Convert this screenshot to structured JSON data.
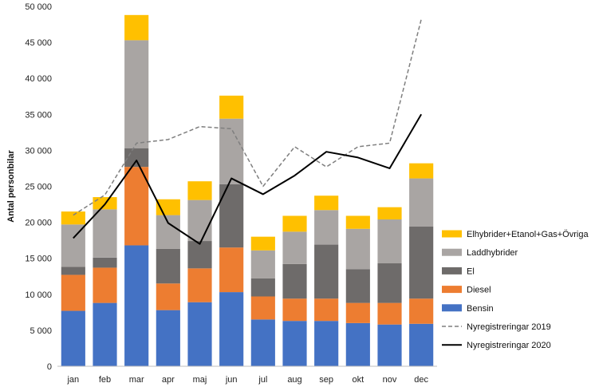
{
  "chart_data": {
    "type": "bar",
    "stacked": true,
    "ylabel": "Antal personbilar",
    "xlabel": "",
    "ylim": [
      0,
      50000
    ],
    "yticks": [
      0,
      5000,
      10000,
      15000,
      20000,
      25000,
      30000,
      35000,
      40000,
      45000,
      50000
    ],
    "ytick_labels": [
      "0",
      "5 000",
      "10 000",
      "15 000",
      "20 000",
      "25 000",
      "30 000",
      "35 000",
      "40 000",
      "45 000",
      "50 000"
    ],
    "grid": false,
    "legend_position": "right",
    "categories": [
      "jan",
      "feb",
      "mar",
      "apr",
      "maj",
      "jun",
      "jul",
      "aug",
      "sep",
      "okt",
      "nov",
      "dec"
    ],
    "series": [
      {
        "name": "Bensin",
        "color": "#4472c4",
        "values": [
          7700,
          8800,
          16800,
          7800,
          8900,
          10300,
          6500,
          6300,
          6300,
          6000,
          5800,
          5900
        ]
      },
      {
        "name": "Diesel",
        "color": "#ed7d31",
        "values": [
          5000,
          4900,
          10900,
          3700,
          4700,
          6200,
          3200,
          3100,
          3100,
          2800,
          3000,
          3500
        ]
      },
      {
        "name": "El",
        "color": "#6e6b6a",
        "values": [
          1100,
          1400,
          2600,
          4800,
          3800,
          8800,
          2500,
          4800,
          7500,
          4700,
          5500,
          10000
        ]
      },
      {
        "name": "Laddhybrider",
        "color": "#a9a5a3",
        "values": [
          5900,
          6700,
          15000,
          4700,
          5700,
          9100,
          3900,
          4500,
          4800,
          5600,
          6100,
          6700
        ]
      },
      {
        "name": "Elhybrider+Etanol+Gas+Övriga",
        "color": "#ffc000",
        "values": [
          1800,
          1700,
          3500,
          2200,
          2600,
          3200,
          1900,
          2200,
          2000,
          1800,
          1700,
          2100
        ]
      }
    ],
    "lines": [
      {
        "name": "Nyregistreringar 2019",
        "color": "#7f7f7f",
        "dashed": true,
        "values": [
          21000,
          23800,
          31000,
          31500,
          33300,
          33000,
          25000,
          30500,
          27700,
          30500,
          31000,
          48200
        ]
      },
      {
        "name": "Nyregistreringar 2020",
        "color": "#000000",
        "dashed": false,
        "values": [
          17800,
          22500,
          28600,
          19900,
          17000,
          26100,
          23900,
          26500,
          29800,
          29000,
          27500,
          35000
        ]
      }
    ],
    "legend_order": [
      "Elhybrider+Etanol+Gas+Övriga",
      "Laddhybrider",
      "El",
      "Diesel",
      "Bensin",
      "Nyregistreringar 2019",
      "Nyregistreringar 2020"
    ]
  }
}
